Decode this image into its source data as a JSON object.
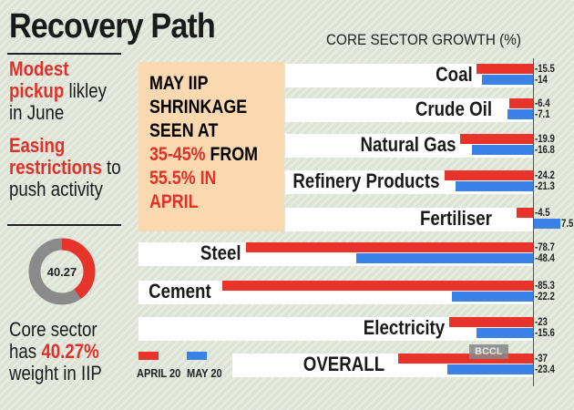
{
  "title": "Recovery Path",
  "left": {
    "line1_red": "Modest",
    "line2_red": "pickup",
    "line2_rest": " likley",
    "line3": "in June",
    "line4_red": "Easing",
    "line5_red": "restrictions",
    "line5_rest": " to",
    "line6": "push activity",
    "donut_value": "40.27",
    "donut_fraction": 0.4027,
    "line7": "Core sector",
    "line8": "has ",
    "line8_red": "40.27%",
    "line9": "weight in IIP"
  },
  "box": {
    "l1": "MAY IIP",
    "l2": "SHRINKAGE",
    "l3": "SEEN AT",
    "l4a": "35-45%",
    "l4b": " FROM",
    "l5": "55.5% IN",
    "l6": "APRIL"
  },
  "colors": {
    "april": "#e8332b",
    "may": "#3a82e8",
    "box": "#fbd9b0"
  },
  "watermark": "BCCL",
  "chart_data": {
    "type": "bar",
    "title": "CORE SECTOR GROWTH (%)",
    "categories": [
      "Coal",
      "Crude Oil",
      "Natural Gas",
      "Refinery Products",
      "Fertiliser",
      "Steel",
      "Cement",
      "Electricity",
      "OVERALL"
    ],
    "series": [
      {
        "name": "APRIL 20",
        "values": [
          -15.5,
          -6.4,
          -19.9,
          -24.2,
          -4.5,
          -78.7,
          -85.3,
          -23,
          -37
        ]
      },
      {
        "name": "MAY 20",
        "values": [
          -14,
          -7.1,
          -16.8,
          -21.3,
          7.5,
          -48.4,
          -22.2,
          -15.6,
          -23.4
        ]
      }
    ],
    "value_labels": {
      "april": [
        "-15.5",
        "-6.4",
        "-19.9",
        "-24.2",
        "-4.5",
        "-78.7",
        "-85.3",
        "-23",
        "-37"
      ],
      "may": [
        "-14",
        "-7.1",
        "-16.8",
        "-21.3",
        "7.5",
        "-48.4",
        "-22.2",
        "-15.6",
        "-23.4"
      ]
    },
    "legend": [
      "APRIL 20",
      "MAY 20"
    ],
    "legend_position": "bottom-left"
  }
}
